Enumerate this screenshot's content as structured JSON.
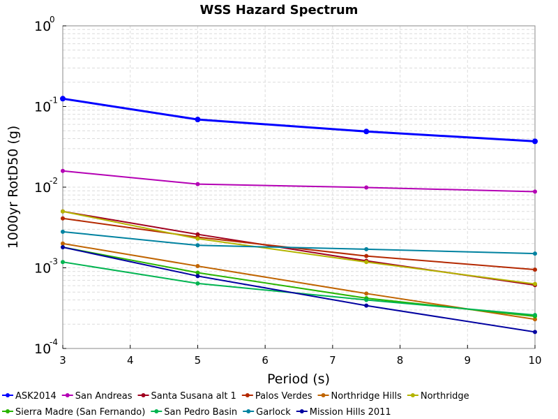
{
  "chart_data": {
    "type": "line",
    "title": "WSS Hazard Spectrum",
    "xlabel": "Period (s)",
    "ylabel": "1000yr RotD50 (g)",
    "xlim": [
      3,
      10
    ],
    "ylim": [
      0.0001,
      1
    ],
    "yscale": "log",
    "grid": true,
    "legend_position": "bottom",
    "x_ticks": [
      "3",
      "4",
      "5",
      "6",
      "7",
      "8",
      "9",
      "10"
    ],
    "y_ticks": [
      {
        "base": "10",
        "exp": "0"
      },
      {
        "base": "10",
        "exp": "-1"
      },
      {
        "base": "10",
        "exp": "-2"
      },
      {
        "base": "10",
        "exp": "-3"
      },
      {
        "base": "10",
        "exp": "-4"
      }
    ],
    "x": [
      3,
      5,
      7.5,
      10
    ],
    "series": [
      {
        "name": "ASK2014",
        "color": "#0000ff",
        "values": [
          0.125,
          0.069,
          0.049,
          0.037
        ]
      },
      {
        "name": "San Andreas",
        "color": "#b400b4",
        "values": [
          0.0159,
          0.0109,
          0.0099,
          0.0088
        ]
      },
      {
        "name": "Santa Susana alt 1",
        "color": "#a0001e",
        "values": [
          0.005,
          0.0026,
          0.00122,
          0.00061
        ]
      },
      {
        "name": "Palos Verdes",
        "color": "#b42800",
        "values": [
          0.0041,
          0.0024,
          0.0014,
          0.00095
        ]
      },
      {
        "name": "Northridge Hills",
        "color": "#c06400",
        "values": [
          0.002,
          0.00105,
          0.00048,
          0.00023
        ]
      },
      {
        "name": "Northridge",
        "color": "#b4b400",
        "values": [
          0.005,
          0.0023,
          0.00118,
          0.00063
        ]
      },
      {
        "name": "Sierra Madre (San Fernando)",
        "color": "#28b400",
        "values": [
          0.0018,
          0.00087,
          0.00042,
          0.00025
        ]
      },
      {
        "name": "San Pedro Basin",
        "color": "#00b450",
        "values": [
          0.00118,
          0.00064,
          0.0004,
          0.00026
        ]
      },
      {
        "name": "Garlock",
        "color": "#0082a0",
        "values": [
          0.0028,
          0.0019,
          0.0017,
          0.0015
        ]
      },
      {
        "name": "Mission Hills 2011",
        "color": "#0000a0",
        "values": [
          0.0018,
          0.00079,
          0.00034,
          0.00016
        ]
      }
    ]
  }
}
